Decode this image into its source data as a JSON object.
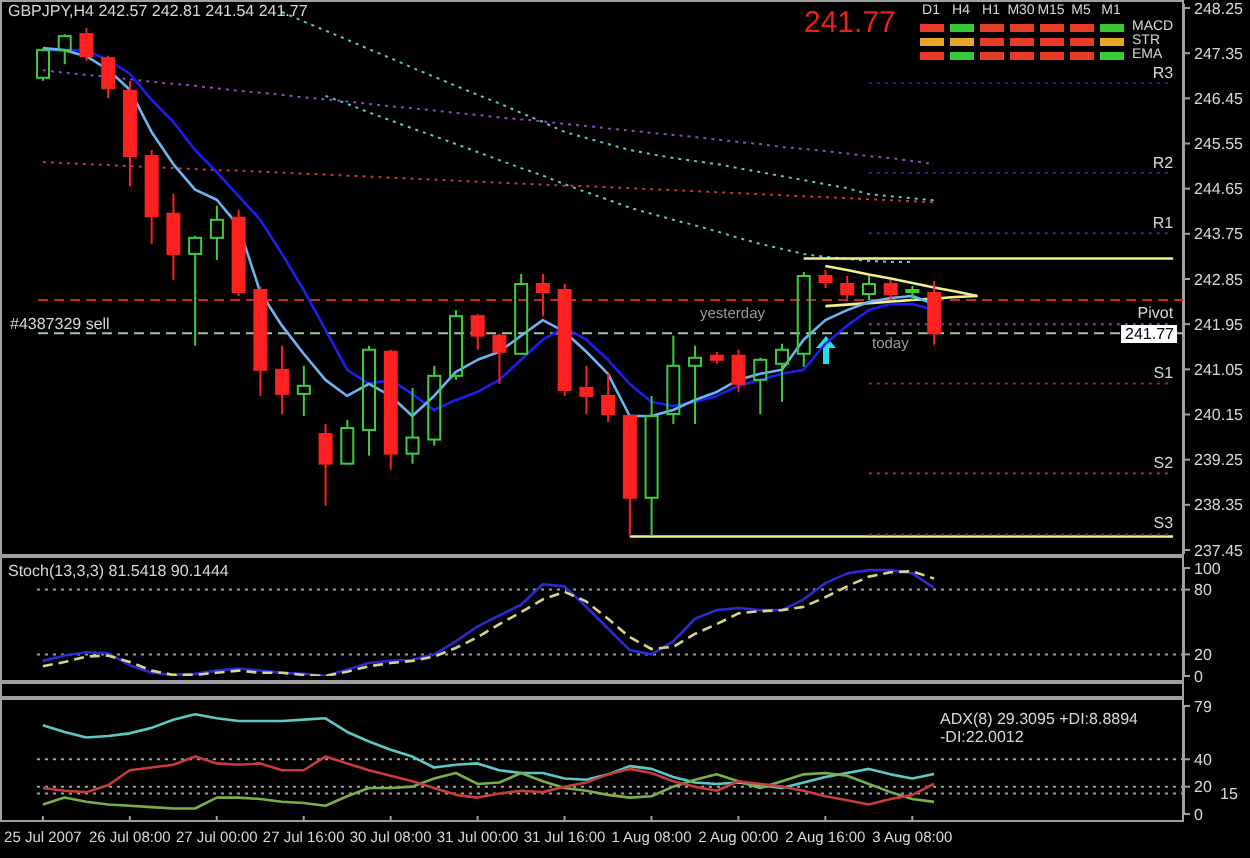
{
  "chart_data": [
    {
      "type": "candlestick",
      "title": "GBPJPY,H4 242.57 242.81 241.54 241.77",
      "categories": [
        null,
        null,
        null,
        null,
        null,
        null,
        null,
        null,
        null,
        null,
        null,
        null,
        null,
        null,
        null,
        null,
        null,
        null,
        null,
        null,
        null,
        null,
        null,
        null,
        null,
        null,
        null,
        null,
        null,
        null,
        null,
        null,
        null,
        null,
        null,
        null,
        null,
        null,
        null,
        null,
        null,
        null,
        null,
        null,
        null,
        null,
        null,
        null,
        null,
        null,
        null,
        null,
        null
      ],
      "ohlc": [
        [
          246.86,
          247.45,
          246.8,
          247.41
        ],
        [
          247.41,
          247.73,
          247.13,
          247.69
        ],
        [
          247.73,
          247.85,
          247.2,
          247.29
        ],
        [
          247.25,
          247.3,
          246.45,
          246.65
        ],
        [
          246.6,
          246.8,
          244.7,
          245.3
        ],
        [
          245.3,
          245.42,
          243.55,
          244.1
        ],
        [
          244.15,
          244.55,
          242.83,
          243.35
        ],
        [
          243.35,
          243.71,
          241.52,
          243.67
        ],
        [
          243.67,
          244.31,
          243.23,
          244.03
        ],
        [
          244.07,
          244.23,
          242.51,
          242.59
        ],
        [
          242.63,
          242.7,
          240.52,
          241.04
        ],
        [
          241.04,
          241.52,
          240.16,
          240.56
        ],
        [
          240.56,
          241.12,
          240.12,
          240.72
        ],
        [
          239.76,
          239.96,
          238.33,
          239.17
        ],
        [
          239.17,
          240.04,
          239.17,
          239.88
        ],
        [
          239.84,
          241.52,
          239.33,
          241.44
        ],
        [
          241.4,
          241.44,
          239.05,
          239.37
        ],
        [
          239.37,
          240.68,
          239.17,
          239.69
        ],
        [
          239.65,
          241.12,
          239.53,
          240.92
        ],
        [
          240.92,
          242.23,
          240.84,
          242.11
        ],
        [
          242.11,
          242.15,
          241.44,
          241.72
        ],
        [
          241.72,
          241.76,
          240.76,
          241.4
        ],
        [
          241.36,
          242.95,
          241.36,
          242.75
        ],
        [
          242.75,
          242.95,
          242.11,
          242.59
        ],
        [
          242.63,
          242.75,
          240.52,
          240.64
        ],
        [
          240.68,
          241.12,
          240.16,
          240.52
        ],
        [
          240.52,
          240.96,
          240.0,
          240.16
        ],
        [
          240.12,
          240.12,
          237.73,
          238.49
        ],
        [
          238.49,
          240.52,
          237.73,
          240.12
        ],
        [
          240.16,
          241.72,
          239.96,
          241.12
        ],
        [
          241.12,
          241.52,
          239.96,
          241.28
        ],
        [
          241.32,
          241.4,
          241.16,
          241.24
        ],
        [
          241.32,
          241.44,
          240.6,
          240.76
        ],
        [
          240.84,
          241.28,
          240.16,
          241.24
        ],
        [
          241.16,
          241.56,
          240.4,
          241.44
        ],
        [
          241.36,
          242.99,
          241.1,
          242.91
        ],
        [
          242.91,
          243.03,
          242.67,
          242.79
        ],
        [
          242.75,
          242.91,
          242.43,
          242.55
        ],
        [
          242.55,
          242.91,
          242.43,
          242.75
        ],
        [
          242.75,
          242.83,
          242.43,
          242.55
        ],
        [
          242.59,
          242.71,
          242.43,
          242.63
        ],
        [
          242.57,
          242.81,
          241.54,
          241.77
        ],
        null,
        null,
        null,
        null,
        null,
        null,
        null,
        null,
        null,
        null,
        null
      ],
      "colors": [
        "#3ccf3c",
        "#3ccf3c",
        "#ff2020",
        "#ff2020",
        "#ff2020",
        "#ff2020",
        "#ff2020",
        "#3ccf3c",
        "#3ccf3c",
        "#ff2020",
        "#ff2020",
        "#ff2020",
        "#3ccf3c",
        "#ff2020",
        "#3ccf3c",
        "#3ccf3c",
        "#ff2020",
        "#3ccf3c",
        "#3ccf3c",
        "#3ccf3c",
        "#ff2020",
        "#ff2020",
        "#3ccf3c",
        "#ff2020",
        "#ff2020",
        "#ff2020",
        "#ff2020",
        "#ff2020",
        "#3ccf3c",
        "#3ccf3c",
        "#3ccf3c",
        "#ff2020",
        "#ff2020",
        "#3ccf3c",
        "#3ccf3c",
        "#3ccf3c",
        "#ff2020",
        "#ff2020",
        "#3ccf3c",
        "#ff2020",
        "#3ccf3c",
        "#ff2020",
        null,
        null,
        null,
        null,
        null,
        null,
        null,
        null,
        null,
        null,
        null
      ],
      "series": [
        {
          "type": "line",
          "color": "#60c8b8",
          "line_style": "dotted",
          "values": [
            null,
            null,
            null,
            null,
            null,
            null,
            null,
            null,
            null,
            null,
            null,
            248.17,
            247.98,
            247.8,
            247.62,
            247.43,
            247.25,
            247.06,
            246.88,
            246.7,
            246.52,
            246.35,
            246.16,
            245.98,
            245.78,
            245.66,
            245.54,
            245.42,
            245.34,
            245.26,
            245.2,
            245.14,
            245.06,
            244.98,
            244.9,
            244.82,
            244.74,
            244.66,
            244.54,
            244.5,
            244.46,
            244.42,
            null,
            null,
            null,
            null,
            null,
            null,
            null,
            null,
            null,
            null,
            null
          ]
        },
        {
          "type": "line",
          "color": "#60c8b8",
          "line_style": "dotted",
          "values": [
            null,
            null,
            null,
            null,
            null,
            null,
            null,
            null,
            null,
            null,
            null,
            null,
            null,
            246.5,
            246.34,
            246.17,
            246.01,
            245.85,
            245.7,
            245.54,
            245.38,
            245.22,
            245.06,
            244.91,
            244.74,
            244.58,
            244.43,
            244.27,
            244.15,
            244.03,
            243.92,
            243.8,
            243.67,
            243.55,
            243.45,
            243.35,
            243.29,
            243.25,
            243.21,
            243.19,
            243.19,
            null,
            null,
            null,
            null,
            null,
            null,
            null,
            null,
            null,
            null,
            null,
            null
          ]
        },
        {
          "type": "line",
          "color": "#9048c0",
          "line_style": "dotted",
          "values": [
            247.01,
            246.96,
            246.92,
            246.88,
            246.83,
            246.78,
            246.74,
            246.7,
            246.65,
            246.6,
            246.56,
            246.52,
            246.47,
            246.43,
            246.39,
            246.34,
            246.29,
            246.25,
            246.21,
            246.16,
            246.12,
            246.07,
            246.03,
            245.99,
            245.94,
            245.9,
            245.85,
            245.81,
            245.76,
            245.72,
            245.68,
            245.63,
            245.58,
            245.54,
            245.48,
            245.44,
            245.4,
            245.35,
            245.3,
            245.26,
            245.2,
            245.14,
            null,
            null,
            null,
            null,
            null,
            null,
            null,
            null,
            null,
            null,
            null
          ]
        },
        {
          "type": "line",
          "color": "#c03838",
          "line_style": "dotted",
          "values": [
            245.18,
            245.16,
            245.14,
            245.12,
            245.1,
            245.08,
            245.06,
            245.04,
            245.02,
            245.01,
            244.99,
            244.97,
            244.95,
            244.93,
            244.91,
            244.89,
            244.87,
            244.85,
            244.83,
            244.81,
            244.79,
            244.77,
            244.75,
            244.73,
            244.71,
            244.7,
            244.68,
            244.66,
            244.64,
            244.62,
            244.6,
            244.58,
            244.56,
            244.54,
            244.52,
            244.5,
            244.48,
            244.46,
            244.44,
            244.42,
            244.4,
            244.38,
            null,
            null,
            null,
            null,
            null,
            null,
            null,
            null,
            null,
            null,
            null
          ]
        },
        {
          "type": "line",
          "name": "R3",
          "color": "#2828a8",
          "line_style": "dotted",
          "values": [
            null,
            null,
            null,
            null,
            null,
            null,
            null,
            null,
            null,
            null,
            null,
            null,
            null,
            null,
            null,
            null,
            null,
            null,
            null,
            null,
            null,
            null,
            null,
            null,
            null,
            null,
            null,
            null,
            null,
            null,
            null,
            null,
            null,
            null,
            null,
            null,
            null,
            null,
            246.75,
            246.75,
            246.75,
            246.75,
            246.75,
            246.75,
            246.75,
            246.75,
            246.75,
            246.75,
            246.75,
            246.75,
            246.75,
            246.75,
            246.75
          ]
        },
        {
          "type": "line",
          "name": "R2",
          "color": "#2828a8",
          "line_style": "dotted",
          "values": [
            null,
            null,
            null,
            null,
            null,
            null,
            null,
            null,
            null,
            null,
            null,
            null,
            null,
            null,
            null,
            null,
            null,
            null,
            null,
            null,
            null,
            null,
            null,
            null,
            null,
            null,
            null,
            null,
            null,
            null,
            null,
            null,
            null,
            null,
            null,
            null,
            null,
            null,
            244.96,
            244.96,
            244.96,
            244.96,
            244.96,
            244.96,
            244.96,
            244.96,
            244.96,
            244.96,
            244.96,
            244.96,
            244.96,
            244.96,
            244.96
          ]
        },
        {
          "type": "line",
          "name": "R1",
          "color": "#2828a8",
          "line_style": "dotted",
          "values": [
            null,
            null,
            null,
            null,
            null,
            null,
            null,
            null,
            null,
            null,
            null,
            null,
            null,
            null,
            null,
            null,
            null,
            null,
            null,
            null,
            null,
            null,
            null,
            null,
            null,
            null,
            null,
            null,
            null,
            null,
            null,
            null,
            null,
            null,
            null,
            null,
            null,
            null,
            243.76,
            243.76,
            243.76,
            243.76,
            243.76,
            243.76,
            243.76,
            243.76,
            243.76,
            243.76,
            243.76,
            243.76,
            243.76,
            243.76,
            243.76
          ]
        },
        {
          "type": "line",
          "name": "Pivot",
          "color": "#9040b0",
          "line_style": "dotted",
          "values": [
            null,
            null,
            null,
            null,
            null,
            null,
            null,
            null,
            null,
            null,
            null,
            null,
            null,
            null,
            null,
            null,
            null,
            null,
            null,
            null,
            null,
            null,
            null,
            null,
            null,
            null,
            null,
            null,
            null,
            null,
            null,
            null,
            null,
            null,
            null,
            null,
            null,
            null,
            241.95,
            241.95,
            241.95,
            241.95,
            241.95,
            241.95,
            241.95,
            241.95,
            241.95,
            241.95,
            241.95,
            241.95,
            241.95,
            241.95,
            241.95
          ]
        },
        {
          "type": "line",
          "name": "S1",
          "color": "#a02828",
          "line_style": "dotted",
          "values": [
            null,
            null,
            null,
            null,
            null,
            null,
            null,
            null,
            null,
            null,
            null,
            null,
            null,
            null,
            null,
            null,
            null,
            null,
            null,
            null,
            null,
            null,
            null,
            null,
            null,
            null,
            null,
            null,
            null,
            null,
            null,
            null,
            null,
            null,
            null,
            null,
            null,
            null,
            240.77,
            240.77,
            240.77,
            240.77,
            240.77,
            240.77,
            240.77,
            240.77,
            240.77,
            240.77,
            240.77,
            240.77,
            240.77,
            240.77,
            240.77
          ]
        },
        {
          "type": "line",
          "name": "S2",
          "color": "#a02828",
          "line_style": "dotted",
          "values": [
            null,
            null,
            null,
            null,
            null,
            null,
            null,
            null,
            null,
            null,
            null,
            null,
            null,
            null,
            null,
            null,
            null,
            null,
            null,
            null,
            null,
            null,
            null,
            null,
            null,
            null,
            null,
            null,
            null,
            null,
            null,
            null,
            null,
            null,
            null,
            null,
            null,
            null,
            238.98,
            238.98,
            238.98,
            238.98,
            238.98,
            238.98,
            238.98,
            238.98,
            238.98,
            238.98,
            238.98,
            238.98,
            238.98,
            238.98,
            238.98
          ]
        },
        {
          "type": "line",
          "color": "#f0f08c",
          "values": [
            null,
            null,
            null,
            null,
            null,
            null,
            null,
            null,
            null,
            null,
            null,
            null,
            null,
            null,
            null,
            null,
            null,
            null,
            null,
            null,
            null,
            null,
            null,
            null,
            null,
            null,
            null,
            null,
            null,
            null,
            null,
            null,
            null,
            null,
            null,
            243.26,
            243.26,
            243.26,
            243.26,
            243.26,
            243.26,
            243.26,
            243.26,
            243.26,
            243.26,
            243.26,
            243.26,
            243.26,
            243.26,
            243.26,
            243.26,
            243.26,
            243.26
          ]
        },
        {
          "type": "line",
          "color": "#f0f08c",
          "values": [
            null,
            null,
            null,
            null,
            null,
            null,
            null,
            null,
            null,
            null,
            null,
            null,
            null,
            null,
            null,
            null,
            null,
            null,
            null,
            null,
            null,
            null,
            null,
            null,
            null,
            null,
            null,
            237.72,
            237.72,
            237.72,
            237.72,
            237.72,
            237.72,
            237.72,
            237.72,
            237.72,
            237.72,
            237.72,
            237.72,
            237.72,
            237.72,
            237.72,
            237.72,
            237.72,
            237.72,
            237.72,
            237.72,
            237.72,
            237.72,
            237.72,
            237.72,
            237.72,
            237.72
          ]
        },
        {
          "type": "line",
          "name": "S3",
          "color": "#a02828",
          "line_style": "dotted",
          "values": [
            null,
            null,
            null,
            null,
            null,
            null,
            null,
            null,
            null,
            null,
            null,
            null,
            null,
            null,
            null,
            null,
            null,
            null,
            null,
            null,
            null,
            null,
            null,
            null,
            null,
            null,
            null,
            null,
            null,
            null,
            null,
            null,
            null,
            null,
            null,
            null,
            null,
            null,
            237.76,
            237.76,
            237.76,
            237.76,
            237.76,
            237.76,
            237.76,
            237.76,
            237.76,
            237.76,
            237.76,
            237.76,
            237.76,
            237.76,
            237.76
          ]
        },
        {
          "type": "line",
          "color": "#f0f08c",
          "values": [
            null,
            null,
            null,
            null,
            null,
            null,
            null,
            null,
            null,
            null,
            null,
            null,
            null,
            null,
            null,
            null,
            null,
            null,
            null,
            null,
            null,
            null,
            null,
            null,
            null,
            null,
            null,
            null,
            null,
            null,
            null,
            null,
            null,
            null,
            null,
            null,
            243.11,
            243.03,
            242.94,
            242.86,
            242.77,
            242.68,
            242.6,
            242.51,
            null,
            null,
            null,
            null,
            null,
            null,
            null,
            null,
            null
          ]
        },
        {
          "type": "line",
          "color": "#f0f08c",
          "values": [
            null,
            null,
            null,
            null,
            null,
            null,
            null,
            null,
            null,
            null,
            null,
            null,
            null,
            null,
            null,
            null,
            null,
            null,
            null,
            null,
            null,
            null,
            null,
            null,
            null,
            null,
            null,
            null,
            null,
            null,
            null,
            null,
            null,
            null,
            null,
            null,
            242.31,
            242.34,
            242.37,
            242.4,
            242.43,
            null,
            242.49,
            242.51,
            null,
            null,
            null,
            null,
            null,
            null,
            null,
            null,
            null
          ]
        },
        {
          "type": "line",
          "color": "#1e1ef0",
          "values": [
            247.41,
            247.41,
            247.41,
            247.21,
            246.94,
            246.42,
            245.98,
            245.42,
            244.98,
            244.5,
            244.03,
            243.35,
            242.63,
            241.84,
            241.04,
            240.76,
            240.84,
            240.56,
            240.24,
            240.44,
            240.6,
            240.84,
            241.24,
            241.64,
            241.88,
            241.64,
            241.24,
            240.76,
            240.4,
            240.32,
            240.4,
            240.52,
            240.72,
            240.84,
            240.96,
            241.04,
            241.56,
            241.92,
            242.23,
            242.35,
            242.35,
            242.23,
            null,
            null,
            null,
            null,
            null,
            null,
            null,
            null,
            null,
            null,
            null
          ]
        },
        {
          "type": "line",
          "color": "#6cb4f4",
          "values": [
            247.45,
            247.41,
            247.29,
            247.02,
            246.62,
            245.78,
            245.14,
            244.63,
            244.43,
            243.91,
            242.59,
            241.92,
            241.36,
            240.84,
            240.52,
            240.76,
            240.52,
            240.12,
            240.52,
            241.0,
            241.24,
            241.4,
            241.72,
            242.03,
            241.8,
            241.4,
            240.96,
            240.12,
            240.12,
            240.24,
            240.44,
            240.6,
            240.84,
            240.96,
            241.04,
            241.64,
            242.03,
            242.23,
            242.39,
            242.47,
            242.51,
            242.35,
            null,
            null,
            null,
            null,
            null,
            null,
            null,
            null,
            null,
            null,
            null
          ]
        }
      ],
      "ylim": [
        237.37,
        248.33
      ],
      "yticks": [
        237.45,
        238.35,
        239.25,
        240.15,
        241.05,
        241.95,
        242.85,
        243.75,
        244.65,
        245.55,
        246.45,
        247.35,
        248.25
      ],
      "tick_labels": "y",
      "ref_lines": [
        {
          "axis": "y",
          "value": 242.43,
          "color": "#c82828",
          "line_style": "dashed"
        },
        {
          "axis": "y",
          "value": 241.77,
          "label": "#4387329 sell",
          "color": "#a0c8a0",
          "line_style": "dashed"
        }
      ],
      "annotations": [
        "241.77",
        {
          "text": "241.77",
          "y": 241.77
        },
        "yesterday",
        "today"
      ]
    },
    {
      "type": "line",
      "title": "Stoch(13,3,3) 81.5418 90.1444",
      "categories": [
        null,
        null,
        null,
        null,
        null,
        null,
        null,
        null,
        null,
        null,
        null,
        null,
        null,
        null,
        null,
        null,
        null,
        null,
        null,
        null,
        null,
        null,
        null,
        null,
        null,
        null,
        null,
        null,
        null,
        null,
        null,
        null,
        null,
        null,
        null,
        null,
        null,
        null,
        null,
        null,
        null,
        null,
        null,
        null,
        null,
        null,
        null,
        null,
        null,
        null,
        null,
        null,
        null
      ],
      "series": [
        {
          "color": "#2a2ad0",
          "values": [
            14,
            19,
            22,
            21,
            10,
            3,
            1,
            2,
            5,
            7,
            5,
            3,
            2,
            0,
            6,
            12,
            14,
            15,
            20,
            32,
            46,
            56,
            66,
            85,
            83,
            64,
            44,
            24,
            20,
            32,
            53,
            61,
            63,
            61,
            61,
            71,
            86,
            95,
            98,
            98,
            95,
            81.5418,
            null,
            null,
            null,
            null,
            null,
            null,
            null,
            null,
            null,
            null,
            null
          ]
        },
        {
          "color": "#d8d488",
          "line_style": "dashed",
          "values": [
            9,
            13,
            18,
            19,
            13,
            5,
            1,
            1,
            3,
            5,
            3,
            3,
            1,
            0,
            4,
            9,
            12,
            14,
            18,
            26,
            36,
            48,
            59,
            71,
            78,
            69,
            53,
            36,
            25,
            27,
            39,
            48,
            58,
            60,
            61,
            64,
            73,
            83,
            92,
            96,
            97,
            90.1444,
            null,
            null,
            null,
            null,
            null,
            null,
            null,
            null,
            null,
            null,
            null
          ]
        }
      ],
      "ylim": [
        0,
        100
      ],
      "yticks": [
        0,
        20,
        80,
        100
      ],
      "tick_labels": "y",
      "ref_lines": [
        {
          "axis": "y",
          "value": 20,
          "color": "#a0a0a0",
          "line_style": "dotted"
        },
        {
          "axis": "y",
          "value": 80,
          "color": "#a0a0a0",
          "line_style": "dotted"
        }
      ]
    },
    {
      "type": "line",
      "title": "ADX(8) 29.3095 +DI:8.8894 -DI:22.0012",
      "categories": [
        "25 Jul 2007",
        null,
        null,
        null,
        "26 Jul 08:00",
        null,
        null,
        null,
        "27 Jul 00:00",
        null,
        null,
        null,
        "27 Jul 16:00",
        null,
        null,
        null,
        "30 Jul 08:00",
        null,
        null,
        null,
        "31 Jul 00:00",
        null,
        null,
        null,
        "31 Jul 16:00",
        null,
        null,
        null,
        "1 Aug 08:00",
        null,
        null,
        null,
        "2 Aug 00:00",
        null,
        null,
        null,
        "2 Aug 16:00",
        null,
        null,
        null,
        "3 Aug 08:00",
        null,
        null,
        null,
        null,
        null,
        null,
        null,
        null,
        null,
        null,
        null,
        null
      ],
      "series": [
        {
          "color": "#5cc8c8",
          "values": [
            65,
            60,
            56,
            57,
            59,
            63,
            69,
            73,
            70,
            68,
            68,
            68,
            69,
            70,
            60,
            53,
            47,
            42,
            34,
            36,
            37,
            32,
            30,
            30,
            26,
            25,
            29,
            35,
            33,
            27,
            23,
            22,
            23,
            21,
            19,
            23,
            27,
            30,
            33,
            29,
            26,
            29.3095,
            null,
            null,
            null,
            null,
            null,
            null,
            null,
            null,
            null,
            null,
            null
          ]
        },
        {
          "color": "#78b048",
          "values": [
            7,
            12,
            9,
            7,
            6,
            5,
            4,
            4,
            12,
            12,
            11,
            9,
            8,
            6,
            13,
            19,
            19,
            20,
            26,
            30,
            22,
            23,
            30,
            24,
            19,
            17,
            14,
            12,
            13,
            20,
            25,
            29,
            24,
            19,
            24,
            29,
            30,
            28,
            22,
            16,
            11,
            8.8894,
            null,
            null,
            null,
            null,
            null,
            null,
            null,
            null,
            null,
            null,
            null
          ]
        },
        {
          "color": "#c83c3c",
          "values": [
            19,
            17,
            16,
            21,
            32,
            34,
            36,
            42,
            37,
            36,
            37,
            32,
            32,
            42,
            37,
            32,
            28,
            24,
            19,
            14,
            12,
            15,
            17,
            16,
            20,
            23,
            29,
            33,
            30,
            24,
            20,
            17,
            24,
            22,
            20,
            17,
            13,
            10,
            7,
            11,
            14,
            22.0012,
            null,
            null,
            null,
            null,
            null,
            null,
            null,
            null,
            null,
            null,
            null
          ]
        }
      ],
      "ylim": [
        0,
        79
      ],
      "yticks": [
        0,
        20,
        40,
        79
      ],
      "ref_lines": [
        {
          "axis": "y",
          "value": 15,
          "label": "15",
          "color": "#a0a0a0",
          "line_style": "dotted"
        },
        {
          "axis": "y",
          "value": 20,
          "color": "#a0a0a0",
          "line_style": "dotted"
        },
        {
          "axis": "y",
          "value": 40,
          "color": "#a0a0a0",
          "line_style": "dotted"
        }
      ]
    },
    {
      "type": "other",
      "categories": [
        "D1",
        "H4",
        "H1",
        "M30",
        "M15",
        "M5",
        "M1"
      ],
      "y_categories": [
        "MACD",
        "STR",
        "EMA"
      ],
      "colors": [
        [
          "#e83a28",
          "#38c838",
          "#e83a28",
          "#e83a28",
          "#e83a28",
          "#e83a28",
          "#38c838"
        ],
        [
          "#e8a628",
          "#e8a628",
          "#e83a28",
          "#e83a28",
          "#e83a28",
          "#e83a28",
          "#e8a628"
        ],
        [
          "#e83a28",
          "#38c838",
          "#e83a28",
          "#e83a28",
          "#e83a28",
          "#e83a28",
          "#38c838"
        ]
      ]
    }
  ]
}
